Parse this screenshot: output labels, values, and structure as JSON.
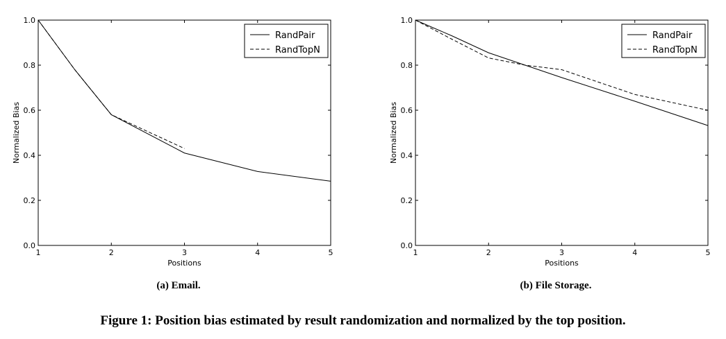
{
  "caption": "Figure 1: Position bias estimated by result randomization and normalized by the top position.",
  "chart_data": [
    {
      "type": "line",
      "subcaption": "(a) Email.",
      "xlabel": "Positions",
      "ylabel": "Normalized Bias",
      "xlim": [
        1,
        5
      ],
      "ylim": [
        0.0,
        1.0
      ],
      "xticks": [
        "1",
        "2",
        "3",
        "4",
        "5"
      ],
      "yticks": [
        "0.0",
        "0.2",
        "0.4",
        "0.6",
        "0.8",
        "1.0"
      ],
      "grid": false,
      "legend": "top-right",
      "series": [
        {
          "name": "RandPair",
          "style": "solid",
          "x": [
            1,
            1.5,
            2,
            3,
            4,
            5
          ],
          "y": [
            1.0,
            0.78,
            0.58,
            0.41,
            0.328,
            0.285
          ]
        },
        {
          "name": "RandTopN",
          "style": "dashed",
          "x": [
            1,
            1.5,
            2,
            3
          ],
          "y": [
            1.0,
            0.78,
            0.58,
            0.43
          ]
        }
      ]
    },
    {
      "type": "line",
      "subcaption": "(b) File Storage.",
      "xlabel": "Positions",
      "ylabel": "Normalized Bias",
      "xlim": [
        1,
        5
      ],
      "ylim": [
        0.0,
        1.0
      ],
      "xticks": [
        "1",
        "2",
        "3",
        "4",
        "5"
      ],
      "yticks": [
        "0.0",
        "0.2",
        "0.4",
        "0.6",
        "0.8",
        "1.0"
      ],
      "grid": false,
      "legend": "top-right",
      "series": [
        {
          "name": "RandPair",
          "style": "solid",
          "x": [
            1,
            1.5,
            2,
            2.5,
            3,
            4,
            5
          ],
          "y": [
            1.0,
            0.93,
            0.855,
            0.8,
            0.745,
            0.64,
            0.532
          ]
        },
        {
          "name": "RandTopN",
          "style": "dashed",
          "x": [
            1,
            1.5,
            2,
            2.5,
            3,
            4,
            5
          ],
          "y": [
            1.0,
            0.915,
            0.832,
            0.8,
            0.78,
            0.67,
            0.6
          ]
        }
      ]
    }
  ]
}
